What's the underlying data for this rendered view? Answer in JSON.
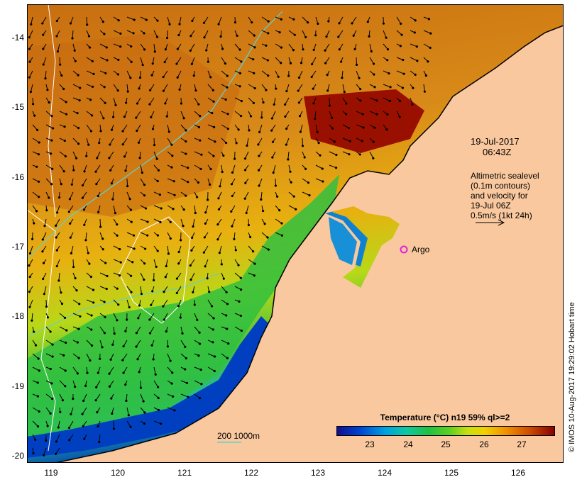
{
  "map": {
    "y_labels": [
      "-14",
      "-15",
      "-16",
      "-17",
      "-18",
      "-19",
      "-20"
    ],
    "x_labels": [
      "119",
      "120",
      "121",
      "122",
      "123",
      "124",
      "125",
      "126"
    ],
    "date": "19-Jul-2017",
    "time": "06:43Z",
    "altimetry_lines": [
      "Altimetric sealevel",
      "(0.1m contours)",
      "and velocity for",
      "19-Jul 06Z",
      "0.5m/s (1kt 24h)"
    ],
    "argo_label": "Argo",
    "depth_contours_label": "200  1000m",
    "credit": "© IMOS 10-Aug-2017 19:29:02 Hobart time",
    "legend_title": "Temperature (°C) n19 59% ql>=2",
    "colorbar_labels": [
      "23",
      "24",
      "25",
      "26",
      "27"
    ],
    "colors": {
      "land": "#f9c89e",
      "warm": "#c05a00",
      "hot": "#8a0000",
      "cool": "#20c040",
      "cold": "#0030b0",
      "contour": "#60d0d0",
      "argo": "#e020e0"
    }
  }
}
